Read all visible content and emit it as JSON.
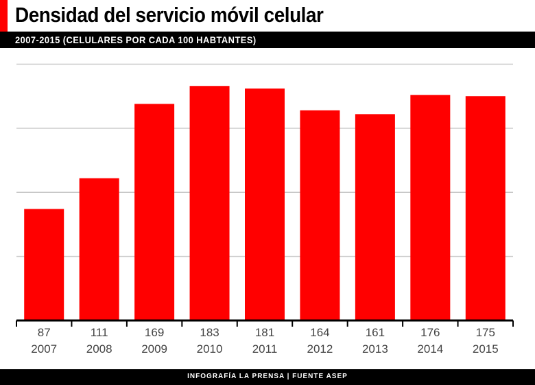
{
  "title": "Densidad del servicio móvil celular",
  "subtitle": "2007-2015 (CELULARES POR CADA 100 HABTANTES)",
  "footer": "INFOGRAFÍA LA PRENSA | FUENTE ASEP",
  "colors": {
    "bar": "#ff0000",
    "accent": "#ff0000",
    "band": "#000000",
    "grid": "#c8c8c8"
  },
  "chart_data": {
    "type": "bar",
    "title": "Densidad del servicio móvil celular",
    "subtitle": "2007-2015 (CELULARES POR CADA 100 HABTANTES)",
    "categories": [
      "2007",
      "2008",
      "2009",
      "2010",
      "2011",
      "2012",
      "2013",
      "2014",
      "2015"
    ],
    "values": [
      87,
      111,
      169,
      183,
      181,
      164,
      161,
      176,
      175
    ],
    "ylim": [
      0,
      200
    ],
    "gridlines": [
      50,
      100,
      150,
      200
    ],
    "grid": true,
    "data_labels": true
  }
}
